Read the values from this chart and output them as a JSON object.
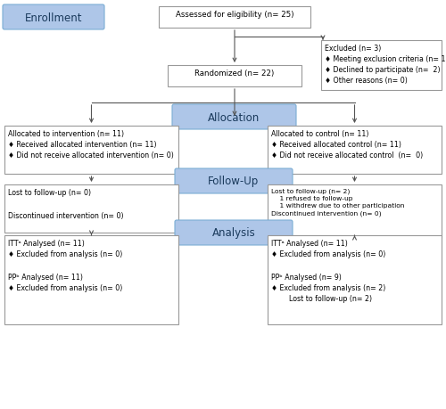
{
  "bg_color": "#ffffff",
  "box_border_color": "#999999",
  "blue_fill": "#aec6e8",
  "arrow_color": "#555555",
  "enrollment_label": "Enrollment",
  "allocation_label": "Allocation",
  "followup_label": "Follow-Up",
  "analysis_label": "Analysis",
  "assess_text": "Assessed for eligibility (n= 25)",
  "excluded_text": "Excluded (n= 3)\n♦ Meeting exclusion criteria (n= 1)\n♦ Declined to participate (n=  2)\n♦ Other reasons (n= 0)",
  "randomized_text": "Randomized (n= 22)",
  "alloc_left_text": "Allocated to intervention (n= 11)\n♦ Received allocated intervention (n= 11)\n♦ Did not receive allocated intervention (n= 0)",
  "alloc_right_text": "Allocated to control (n= 11)\n♦ Received allocated control (n= 11)\n♦ Did not receive allocated control  (n=  0)",
  "followup_left_text": "Lost to follow-up (n= 0)\n\nDiscontinued intervention (n= 0)",
  "followup_right_text": "Lost to follow-up (n= 2)\n    1 refused to follow-up\n    1 withdrew due to other participation\nDiscontinued intervention (n= 0)",
  "analysis_left_text": "ITTᵃ Analysed (n= 11)\n♦ Excluded from analysis (n= 0)\n\nPPᵇ Analysed (n= 11)\n♦ Excluded from analysis (n= 0)",
  "analysis_right_text": "ITTᵃ Analysed (n= 11)\n♦ Excluded from analysis (n= 0)\n\nPPᵇ Analysed (n= 9)\n♦ Excluded from analysis (n= 2)\n        Lost to follow-up (n= 2)",
  "fontsize": 6.2,
  "label_fontsize": 8.5
}
